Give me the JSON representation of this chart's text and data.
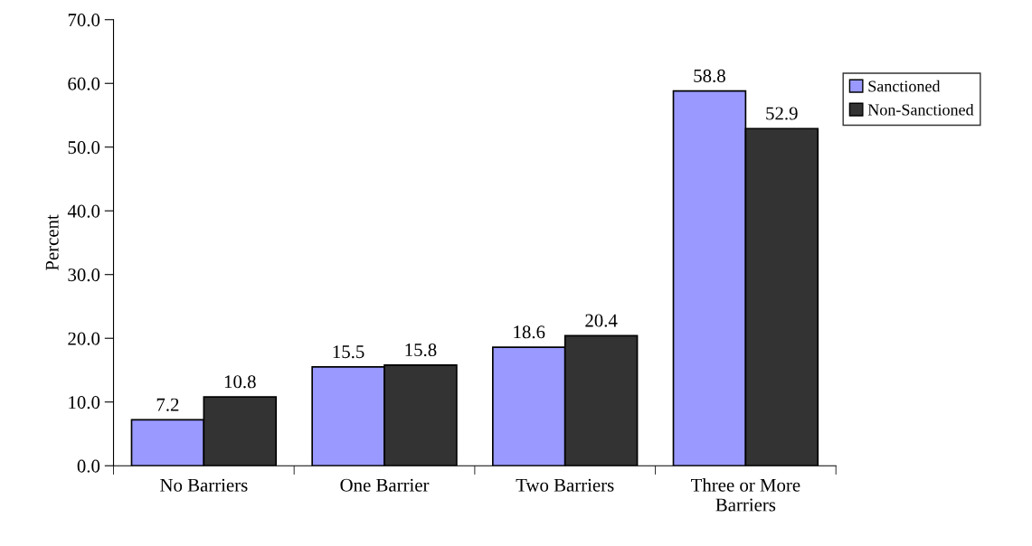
{
  "chart_data": {
    "type": "bar",
    "ylabel": "Percent",
    "categories": [
      "No Barriers",
      "One Barrier",
      "Two Barriers",
      "Three or More\nBarriers"
    ],
    "series": [
      {
        "name": "Sanctioned",
        "color": "#9999ff",
        "values": [
          7.2,
          15.5,
          18.6,
          58.8
        ]
      },
      {
        "name": "Non-Sanctioned",
        "color": "#333333",
        "values": [
          10.8,
          15.8,
          20.4,
          52.9
        ]
      }
    ],
    "ylim": [
      0,
      70
    ],
    "yticks": [
      {
        "value": 0,
        "label": "0.0"
      },
      {
        "value": 10,
        "label": "10.0"
      },
      {
        "value": 20,
        "label": "20.0"
      },
      {
        "value": 30,
        "label": "30.0"
      },
      {
        "value": 40,
        "label": "40.0"
      },
      {
        "value": 50,
        "label": "50.0"
      },
      {
        "value": 60,
        "label": "60.0"
      },
      {
        "value": 70,
        "label": "70.0"
      }
    ],
    "data_labels": true,
    "grid": false,
    "legend": "top right"
  }
}
